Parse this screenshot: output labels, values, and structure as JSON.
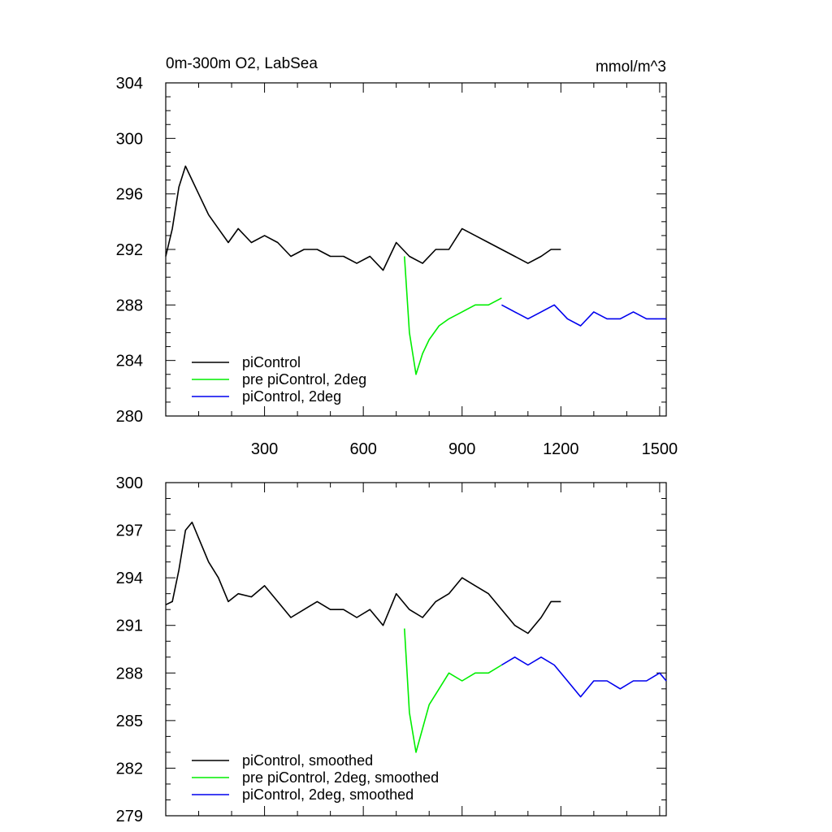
{
  "chart_data": [
    {
      "type": "line",
      "title_left": "0m-300m O2, LabSea",
      "title_right": "mmol/m^3",
      "xlim": [
        0,
        1520
      ],
      "ylim": [
        280,
        304
      ],
      "xticks": [
        300,
        600,
        900,
        1200,
        1500
      ],
      "xtick_labels": [
        "300",
        "600",
        "900",
        "1200",
        "1500"
      ],
      "yticks": [
        280,
        284,
        288,
        292,
        296,
        300,
        304
      ],
      "ytick_labels": [
        "280",
        "284",
        "288",
        "292",
        "296",
        "300",
        "304"
      ],
      "legend_position": "bottom-left",
      "series": [
        {
          "name": "piControl",
          "color": "#000000",
          "x": [
            0,
            20,
            40,
            60,
            80,
            100,
            130,
            160,
            190,
            220,
            260,
            300,
            340,
            380,
            420,
            460,
            500,
            540,
            580,
            620,
            660,
            700,
            740,
            780,
            820,
            860,
            900,
            940,
            980,
            1020,
            1060,
            1100,
            1140,
            1170,
            1200
          ],
          "y": [
            291.5,
            293.5,
            296.5,
            298,
            297,
            296,
            294.5,
            293.5,
            292.5,
            293.5,
            292.5,
            293,
            292.5,
            291.5,
            292,
            292,
            291.5,
            291.5,
            291,
            291.5,
            290.5,
            292.5,
            291.5,
            291,
            292,
            292,
            293.5,
            293,
            292.5,
            292,
            291.5,
            291,
            291.5,
            292,
            292
          ]
        },
        {
          "name": "pre piControl, 2deg",
          "color": "#00ee00",
          "x": [
            725,
            740,
            760,
            780,
            800,
            830,
            860,
            900,
            940,
            980,
            1020
          ],
          "y": [
            291.5,
            286,
            283,
            284.5,
            285.5,
            286.5,
            287,
            287.5,
            288,
            288,
            288.5
          ]
        },
        {
          "name": "piControl, 2deg",
          "color": "#0000ee",
          "x": [
            1020,
            1060,
            1100,
            1140,
            1180,
            1220,
            1260,
            1300,
            1340,
            1380,
            1420,
            1460,
            1500,
            1520
          ],
          "y": [
            288,
            287.5,
            287,
            287.5,
            288,
            287,
            286.5,
            287.5,
            287,
            287,
            287.5,
            287,
            287,
            287
          ]
        }
      ]
    },
    {
      "type": "line",
      "xlim": [
        0,
        1520
      ],
      "ylim": [
        279,
        300
      ],
      "xticks": [
        300,
        600,
        900,
        1200,
        1500
      ],
      "yticks": [
        279,
        282,
        285,
        288,
        291,
        294,
        297,
        300
      ],
      "ytick_labels": [
        "279",
        "282",
        "285",
        "288",
        "291",
        "294",
        "297",
        "300"
      ],
      "legend_position": "bottom-left",
      "series": [
        {
          "name": "piControl, smoothed",
          "color": "#000000",
          "x": [
            0,
            20,
            40,
            60,
            80,
            100,
            130,
            160,
            190,
            220,
            260,
            300,
            340,
            380,
            420,
            460,
            500,
            540,
            580,
            620,
            660,
            700,
            740,
            780,
            820,
            860,
            900,
            940,
            980,
            1020,
            1060,
            1100,
            1140,
            1170,
            1200
          ],
          "y": [
            292.3,
            292.5,
            294.5,
            297,
            297.5,
            296.5,
            295,
            294,
            292.5,
            293,
            292.8,
            293.5,
            292.5,
            291.5,
            292,
            292.5,
            292,
            292,
            291.5,
            292,
            291,
            293,
            292,
            291.5,
            292.5,
            293,
            294,
            293.5,
            293,
            292,
            291,
            290.5,
            291.5,
            292.5,
            292.5
          ]
        },
        {
          "name": "pre piControl, 2deg, smoothed",
          "color": "#00ee00",
          "x": [
            725,
            740,
            760,
            780,
            800,
            830,
            860,
            900,
            940,
            980,
            1020
          ],
          "y": [
            290.8,
            285.5,
            283,
            284.5,
            286,
            287,
            288,
            287.5,
            288,
            288,
            288.5
          ]
        },
        {
          "name": "piControl, 2deg, smoothed",
          "color": "#0000ee",
          "x": [
            1020,
            1060,
            1100,
            1140,
            1180,
            1220,
            1260,
            1300,
            1340,
            1380,
            1420,
            1460,
            1500,
            1520
          ],
          "y": [
            288.5,
            289,
            288.5,
            289,
            288.5,
            287.5,
            286.5,
            287.5,
            287.5,
            287,
            287.5,
            287.5,
            288,
            287.5
          ]
        }
      ]
    }
  ]
}
